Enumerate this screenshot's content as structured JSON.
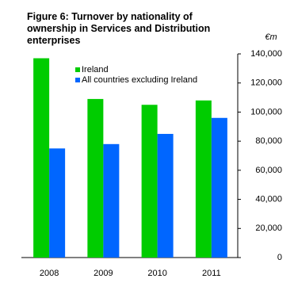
{
  "chart_data": {
    "type": "bar",
    "title": "Figure 6: Turnover by nationality of ownership in Services and Distribution enterprises",
    "y_unit": "€m",
    "categories": [
      "2008",
      "2009",
      "2010",
      "2011"
    ],
    "series": [
      {
        "name": "Ireland",
        "color": "#00cc00",
        "values": [
          137000,
          109000,
          105000,
          108000
        ]
      },
      {
        "name": "All countries excluding Ireland",
        "color": "#0066ff",
        "values": [
          75000,
          78000,
          85000,
          96000
        ]
      }
    ],
    "ylim": [
      0,
      140000
    ],
    "yticks": [
      0,
      {
        "value": 20000,
        "label": "20,000"
      },
      {
        "value": 40000,
        "label": "40,000"
      },
      {
        "value": 60000,
        "label": "60,000"
      },
      {
        "value": 80000,
        "label": "80,000"
      },
      {
        "value": 100000,
        "label": "100,000"
      },
      {
        "value": 120000,
        "label": "120,000"
      },
      {
        "value": 140000,
        "label": "140,000"
      }
    ],
    "grid": false
  }
}
